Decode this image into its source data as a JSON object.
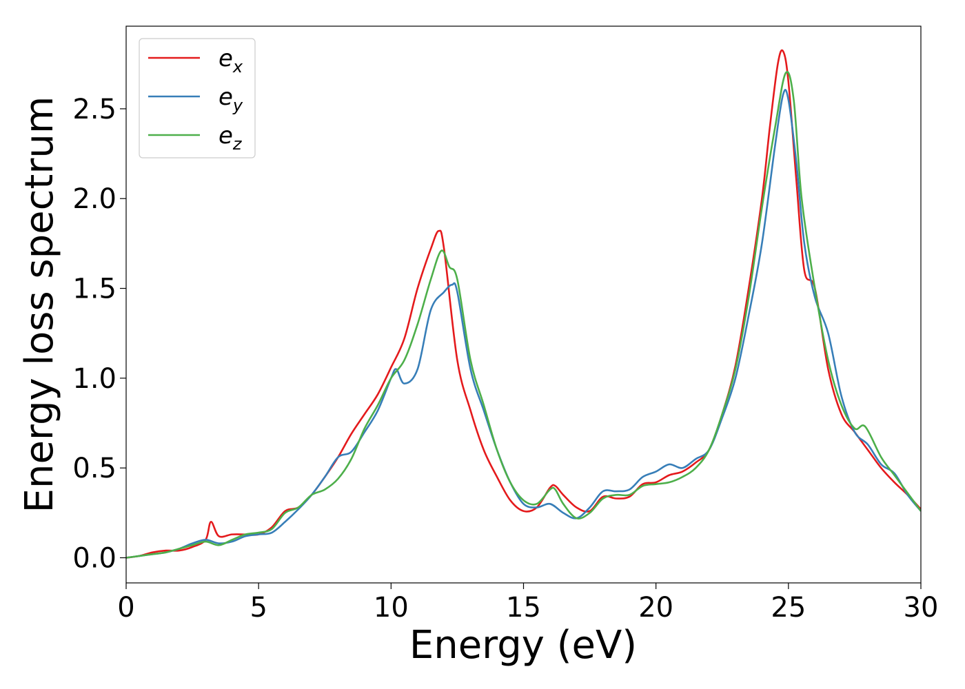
{
  "chart_data": {
    "type": "line",
    "title": "",
    "xlabel": "Energy (eV)",
    "ylabel": "Energy loss spectrum",
    "xlim": [
      0,
      30
    ],
    "ylim": [
      -0.14,
      2.96
    ],
    "xticks": [
      0,
      5,
      10,
      15,
      20,
      25,
      30
    ],
    "xtick_labels": [
      "0",
      "5",
      "10",
      "15",
      "20",
      "25",
      "30"
    ],
    "yticks": [
      0.0,
      0.5,
      1.0,
      1.5,
      2.0,
      2.5
    ],
    "ytick_labels": [
      "0.0",
      "0.5",
      "1.0",
      "1.5",
      "2.0",
      "2.5"
    ],
    "grid": false,
    "legend_position": "top-left",
    "series": [
      {
        "name": "e_x",
        "label_base": "e",
        "label_sub": "x",
        "color": "#e41a1c",
        "x": [
          0,
          0.5,
          1,
          1.5,
          2,
          2.5,
          3,
          3.2,
          3.5,
          4,
          4.5,
          5,
          5.5,
          6,
          6.5,
          7,
          7.5,
          8,
          8.5,
          9,
          9.5,
          10,
          10.5,
          11,
          11.5,
          11.8,
          12,
          12.5,
          13,
          13.5,
          14,
          14.5,
          15,
          15.5,
          16,
          16.2,
          16.5,
          17,
          17.5,
          18,
          18.5,
          19,
          19.5,
          20,
          20.5,
          21,
          21.5,
          22,
          22.5,
          23,
          23.5,
          24,
          24.3,
          24.6,
          24.8,
          25,
          25.3,
          25.6,
          26,
          26.5,
          27,
          27.5,
          28,
          28.5,
          29,
          29.5,
          30
        ],
        "y": [
          0,
          0.01,
          0.03,
          0.04,
          0.04,
          0.06,
          0.1,
          0.2,
          0.12,
          0.13,
          0.13,
          0.13,
          0.17,
          0.26,
          0.28,
          0.35,
          0.45,
          0.56,
          0.69,
          0.8,
          0.91,
          1.06,
          1.22,
          1.5,
          1.72,
          1.82,
          1.72,
          1.1,
          0.82,
          0.6,
          0.45,
          0.32,
          0.26,
          0.28,
          0.39,
          0.4,
          0.35,
          0.28,
          0.26,
          0.34,
          0.33,
          0.34,
          0.41,
          0.42,
          0.46,
          0.48,
          0.53,
          0.6,
          0.8,
          1.07,
          1.5,
          2.0,
          2.4,
          2.75,
          2.82,
          2.65,
          2.1,
          1.6,
          1.5,
          1.05,
          0.8,
          0.7,
          0.6,
          0.5,
          0.42,
          0.35,
          0.27
        ]
      },
      {
        "name": "e_y",
        "label_base": "e",
        "label_sub": "y",
        "color": "#377eb8",
        "x": [
          0,
          0.5,
          1,
          1.5,
          2,
          2.5,
          3,
          3.5,
          4,
          4.5,
          5,
          5.5,
          6,
          6.5,
          7,
          7.5,
          8,
          8.5,
          9,
          9.5,
          10,
          10.2,
          10.5,
          11,
          11.5,
          12,
          12.3,
          12.5,
          13,
          13.5,
          14,
          14.5,
          15,
          15.5,
          16,
          16.5,
          17,
          17.5,
          18,
          18.5,
          19,
          19.5,
          20,
          20.5,
          21,
          21.5,
          22,
          22.5,
          23,
          23.5,
          24,
          24.5,
          24.8,
          25,
          25.3,
          25.6,
          26,
          26.5,
          27,
          27.5,
          28,
          28.5,
          29,
          29.5,
          30
        ],
        "y": [
          0,
          0.01,
          0.02,
          0.03,
          0.05,
          0.08,
          0.1,
          0.08,
          0.09,
          0.12,
          0.13,
          0.14,
          0.2,
          0.27,
          0.35,
          0.45,
          0.56,
          0.59,
          0.7,
          0.82,
          1.0,
          1.05,
          0.97,
          1.05,
          1.38,
          1.48,
          1.52,
          1.48,
          1.05,
          0.82,
          0.6,
          0.42,
          0.3,
          0.28,
          0.3,
          0.25,
          0.22,
          0.28,
          0.37,
          0.37,
          0.38,
          0.45,
          0.48,
          0.52,
          0.5,
          0.55,
          0.6,
          0.78,
          1.0,
          1.35,
          1.75,
          2.3,
          2.58,
          2.55,
          2.2,
          1.75,
          1.45,
          1.25,
          0.9,
          0.7,
          0.63,
          0.52,
          0.47,
          0.35,
          0.26
        ]
      },
      {
        "name": "e_z",
        "label_base": "e",
        "label_sub": "z",
        "color": "#4daf4a",
        "x": [
          0,
          0.5,
          1,
          1.5,
          2,
          2.5,
          3,
          3.5,
          4,
          4.5,
          5,
          5.5,
          6,
          6.5,
          7,
          7.5,
          8,
          8.5,
          9,
          9.5,
          10,
          10.5,
          11,
          11.5,
          11.9,
          12.2,
          12.5,
          13,
          13.5,
          14,
          14.5,
          15,
          15.5,
          16,
          16.2,
          16.5,
          17,
          17.5,
          18,
          18.5,
          19,
          19.5,
          20,
          20.5,
          21,
          21.5,
          22,
          22.5,
          23,
          23.5,
          24,
          24.5,
          24.9,
          25.2,
          25.5,
          26,
          26.5,
          27,
          27.5,
          27.9,
          28.5,
          29,
          29.5,
          30
        ],
        "y": [
          0,
          0.01,
          0.02,
          0.03,
          0.05,
          0.07,
          0.09,
          0.07,
          0.1,
          0.13,
          0.14,
          0.16,
          0.25,
          0.28,
          0.35,
          0.38,
          0.44,
          0.55,
          0.72,
          0.85,
          1.0,
          1.1,
          1.3,
          1.55,
          1.71,
          1.62,
          1.55,
          1.1,
          0.85,
          0.6,
          0.42,
          0.32,
          0.3,
          0.38,
          0.38,
          0.3,
          0.22,
          0.25,
          0.33,
          0.35,
          0.35,
          0.4,
          0.41,
          0.42,
          0.45,
          0.5,
          0.6,
          0.8,
          1.05,
          1.45,
          1.95,
          2.4,
          2.7,
          2.55,
          2.0,
          1.5,
          1.1,
          0.85,
          0.72,
          0.73,
          0.56,
          0.46,
          0.36,
          0.26
        ]
      }
    ]
  }
}
